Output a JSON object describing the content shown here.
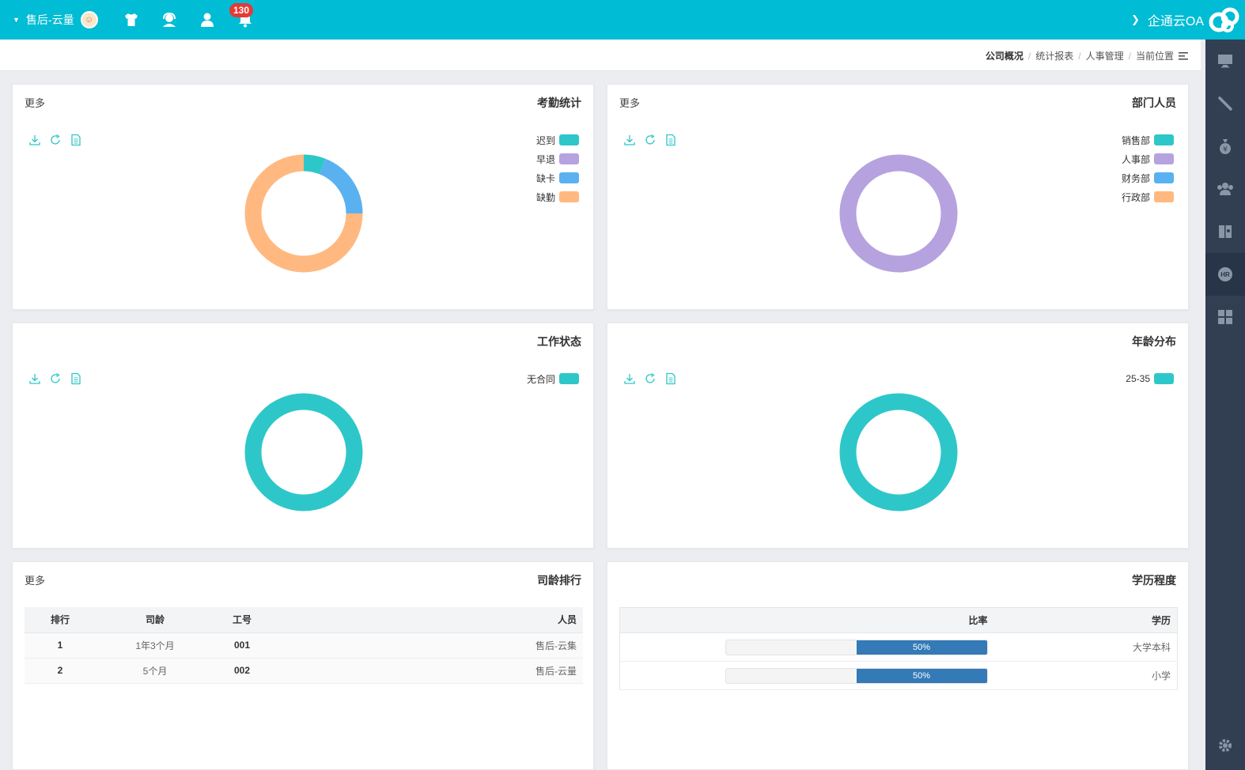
{
  "app": {
    "name": "企通云OA",
    "brand_color": "#00bcd4"
  },
  "topbar": {
    "user_name": "售后-云量",
    "notification_count": "130",
    "icons": [
      "caret-down-icon",
      "avatar",
      "tshirt-icon",
      "support-icon",
      "user-icon",
      "bell-icon"
    ]
  },
  "sidebar": {
    "items": [
      "monitor-icon",
      "pen-icon",
      "money-bag-icon",
      "group-icon",
      "contacts-book-icon",
      "hr-icon",
      "grid-icon",
      "settings-icon"
    ],
    "active": "hr-icon",
    "bg_color": "#323e52"
  },
  "breadcrumb": {
    "label": "当前位置",
    "items": [
      "人事管理",
      "统计报表"
    ],
    "current": "公司概况"
  },
  "colors": {
    "teal": "#2ec7c9",
    "purple": "#b6a2de",
    "blue": "#5ab1ef",
    "orange": "#ffb980",
    "progress": "#337ab7"
  },
  "panels": {
    "dept": {
      "title": "部门人员",
      "more": "更多",
      "legend": [
        {
          "label": "销售部",
          "color": "#2ec7c9"
        },
        {
          "label": "人事部",
          "color": "#b6a2de"
        },
        {
          "label": "财务部",
          "color": "#5ab1ef"
        },
        {
          "label": "行政部",
          "color": "#ffb980"
        }
      ],
      "values": [
        0,
        1,
        0,
        0
      ]
    },
    "attendance": {
      "title": "考勤统计",
      "more": "更多",
      "legend": [
        {
          "label": "迟到",
          "color": "#2ec7c9"
        },
        {
          "label": "早退",
          "color": "#b6a2de"
        },
        {
          "label": "缺卡",
          "color": "#5ab1ef"
        },
        {
          "label": "缺勤",
          "color": "#ffb980"
        }
      ],
      "values": [
        6,
        0,
        19,
        75
      ]
    },
    "age": {
      "title": "年龄分布",
      "legend": [
        {
          "label": "25-35",
          "color": "#2ec7c9"
        }
      ],
      "values": [
        1
      ]
    },
    "work": {
      "title": "工作状态",
      "legend": [
        {
          "label": "无合同",
          "color": "#2ec7c9"
        }
      ],
      "values": [
        1
      ]
    },
    "education": {
      "title": "学历程度",
      "headers": {
        "edu": "学历",
        "ratio": "比率"
      },
      "rows": [
        {
          "edu": "大学本科",
          "ratio": "50%",
          "value": 0.5
        },
        {
          "edu": "小学",
          "ratio": "50%",
          "value": 0.5
        }
      ]
    },
    "seniority": {
      "title": "司龄排行",
      "more": "更多",
      "headers": {
        "person": "人员",
        "id": "工号",
        "tenure": "司龄",
        "rank": "排行"
      },
      "rows": [
        {
          "person": "售后-云集",
          "id": "001",
          "tenure": "1年3个月",
          "rank": "1"
        },
        {
          "person": "售后-云量",
          "id": "002",
          "tenure": "5个月",
          "rank": "2"
        }
      ]
    }
  }
}
